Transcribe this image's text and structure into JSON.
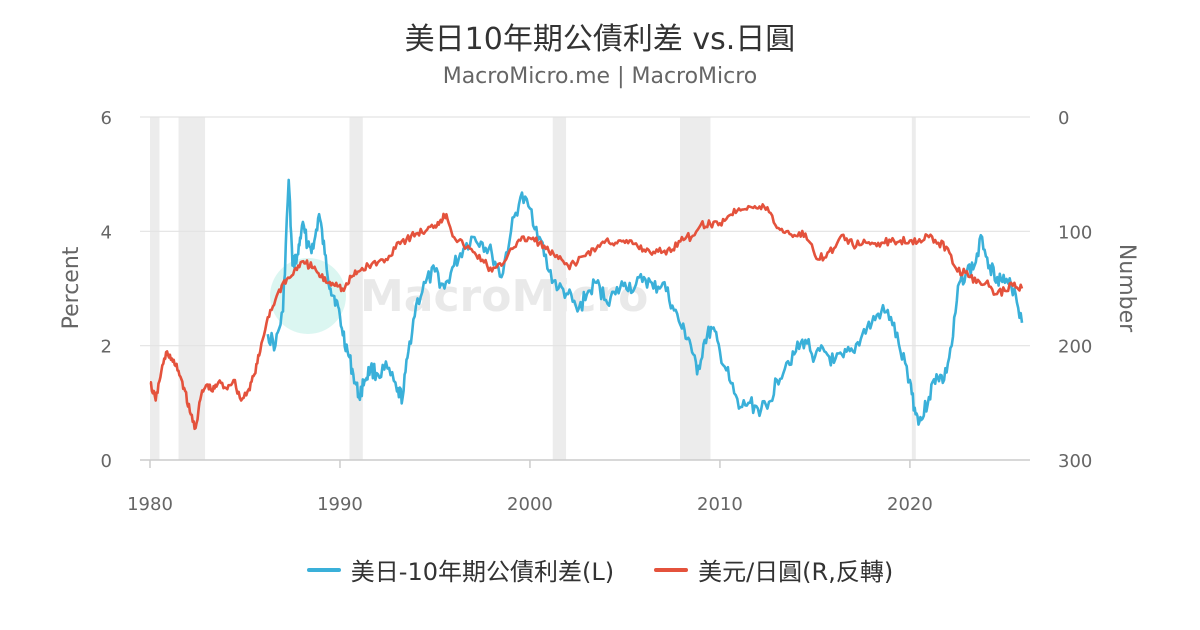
{
  "chart_data": {
    "type": "line",
    "title": "美日10年期公債利差 vs.日圓",
    "subtitle": "MacroMicro.me | MacroMicro",
    "watermark": "MacroMicro",
    "x_ticks": [
      "1980",
      "1990",
      "2000",
      "2010",
      "2020"
    ],
    "xlim": [
      1980,
      2025.9
    ],
    "left_axis": {
      "label": "Percent",
      "ylim": [
        0,
        6
      ],
      "ticks": [
        "0",
        "2",
        "4",
        "6"
      ]
    },
    "right_axis": {
      "label": "Number",
      "ylim": [
        0,
        300
      ],
      "reversed": true,
      "ticks": [
        "0",
        "100",
        "200",
        "300"
      ]
    },
    "grid": true,
    "legend_position": "bottom",
    "recession_shading": [
      [
        1980.0,
        1980.5
      ],
      [
        1981.5,
        1982.9
      ],
      [
        1990.5,
        1991.2
      ],
      [
        2001.2,
        2001.9
      ],
      [
        2007.9,
        2009.5
      ],
      [
        2020.1,
        2020.3
      ]
    ],
    "series": [
      {
        "name": "美日-10年期公債利差(L)",
        "axis": "left",
        "color": "#3ab0d9",
        "x": [
          1986.2,
          1986.6,
          1987.0,
          1987.3,
          1987.5,
          1987.8,
          1988.0,
          1988.3,
          1988.6,
          1988.9,
          1989.2,
          1989.5,
          1989.8,
          1990.1,
          1990.4,
          1990.7,
          1991.0,
          1991.3,
          1991.6,
          1992.0,
          1992.5,
          1993.0,
          1993.3,
          1993.6,
          1994.0,
          1994.5,
          1995.0,
          1995.5,
          1996.0,
          1996.5,
          1997.0,
          1997.5,
          1998.0,
          1998.5,
          1999.0,
          1999.5,
          2000.0,
          2000.5,
          2001.0,
          2001.5,
          2002.0,
          2002.5,
          2003.0,
          2003.5,
          2004.0,
          2004.5,
          2005.0,
          2005.5,
          2006.0,
          2006.5,
          2007.0,
          2007.5,
          2008.0,
          2008.4,
          2008.8,
          2009.2,
          2009.6,
          2010.0,
          2010.5,
          2011.0,
          2011.5,
          2012.0,
          2012.5,
          2013.0,
          2013.5,
          2014.0,
          2014.5,
          2015.0,
          2015.5,
          2016.0,
          2016.5,
          2017.0,
          2017.5,
          2018.0,
          2018.5,
          2019.0,
          2019.5,
          2020.0,
          2020.3,
          2020.6,
          2021.0,
          2021.4,
          2021.8,
          2022.2,
          2022.6,
          2023.0,
          2023.4,
          2023.8,
          2024.2,
          2024.6,
          2025.0,
          2025.5,
          2025.9
        ],
        "values": [
          2.2,
          2.0,
          2.6,
          4.9,
          3.4,
          3.6,
          4.1,
          3.8,
          3.7,
          4.3,
          3.6,
          3.0,
          2.8,
          2.3,
          1.9,
          1.5,
          1.1,
          1.4,
          1.6,
          1.5,
          1.6,
          1.2,
          1.1,
          1.9,
          2.7,
          3.1,
          3.3,
          3.0,
          3.4,
          3.7,
          3.9,
          3.8,
          3.6,
          3.2,
          4.0,
          4.6,
          4.4,
          3.9,
          3.3,
          3.0,
          2.9,
          2.6,
          2.9,
          3.1,
          2.8,
          2.9,
          3.1,
          3.0,
          3.2,
          3.0,
          3.1,
          2.7,
          2.3,
          2.1,
          1.5,
          2.1,
          2.3,
          1.9,
          1.4,
          0.9,
          1.0,
          0.9,
          0.9,
          1.4,
          1.7,
          1.9,
          2.1,
          1.8,
          1.9,
          1.7,
          1.8,
          1.9,
          2.2,
          2.4,
          2.6,
          2.5,
          1.9,
          1.4,
          0.8,
          0.7,
          1.1,
          1.5,
          1.4,
          2.0,
          3.1,
          3.3,
          3.4,
          3.9,
          3.4,
          3.2,
          3.1,
          3.0,
          2.4
        ]
      },
      {
        "name": "美元/日圓(R,反轉)",
        "axis": "right",
        "color": "#e4523c",
        "x": [
          1980.0,
          1980.3,
          1980.6,
          1980.9,
          1981.2,
          1981.5,
          1981.8,
          1982.1,
          1982.4,
          1982.7,
          1983.0,
          1983.3,
          1983.6,
          1984.0,
          1984.4,
          1984.8,
          1985.2,
          1985.5,
          1985.8,
          1986.2,
          1986.6,
          1987.0,
          1987.4,
          1987.8,
          1988.2,
          1988.6,
          1989.0,
          1989.4,
          1989.8,
          1990.2,
          1990.6,
          1991.0,
          1991.5,
          1992.0,
          1992.5,
          1993.0,
          1993.5,
          1994.0,
          1994.5,
          1995.0,
          1995.3,
          1995.6,
          1996.0,
          1996.5,
          1997.0,
          1997.5,
          1998.0,
          1998.5,
          1999.0,
          1999.5,
          2000.0,
          2000.5,
          2001.0,
          2001.5,
          2002.0,
          2002.5,
          2003.0,
          2003.5,
          2004.0,
          2004.5,
          2005.0,
          2005.5,
          2006.0,
          2006.5,
          2007.0,
          2007.5,
          2008.0,
          2008.5,
          2009.0,
          2009.5,
          2010.0,
          2010.5,
          2011.0,
          2011.5,
          2012.0,
          2012.5,
          2013.0,
          2013.5,
          2014.0,
          2014.5,
          2015.0,
          2015.5,
          2016.0,
          2016.5,
          2017.0,
          2017.5,
          2018.0,
          2018.5,
          2019.0,
          2019.5,
          2020.0,
          2020.5,
          2021.0,
          2021.5,
          2022.0,
          2022.5,
          2023.0,
          2023.5,
          2024.0,
          2024.5,
          2025.0,
          2025.5,
          2025.9
        ],
        "values": [
          232,
          248,
          222,
          205,
          214,
          222,
          237,
          258,
          272,
          243,
          234,
          240,
          232,
          237,
          230,
          248,
          238,
          225,
          205,
          175,
          160,
          145,
          140,
          130,
          128,
          132,
          140,
          145,
          145,
          152,
          140,
          135,
          130,
          127,
          125,
          110,
          107,
          102,
          100,
          95,
          90,
          85,
          105,
          112,
          118,
          125,
          135,
          130,
          115,
          108,
          106,
          110,
          118,
          124,
          130,
          127,
          119,
          115,
          108,
          110,
          110,
          111,
          116,
          118,
          118,
          116,
          105,
          105,
          94,
          94,
          93,
          86,
          80,
          78,
          80,
          79,
          97,
          100,
          104,
          102,
          121,
          123,
          115,
          103,
          112,
          111,
          110,
          110,
          109,
          108,
          108,
          107,
          105,
          110,
          115,
          135,
          135,
          145,
          145,
          155,
          152,
          145,
          150
        ]
      }
    ]
  }
}
